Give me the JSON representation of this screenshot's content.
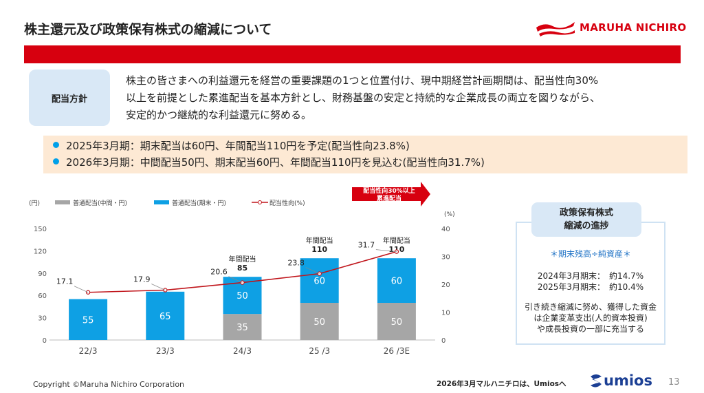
{
  "header": {
    "title": "株主還元及び政策保有株式の縮減について",
    "logo_text": "MARUHA NICHIRO"
  },
  "policy": {
    "label": "配当方針",
    "lines": [
      "株主の皆さまへの利益還元を経営の重要課題の1つと位置付け、現中期経営計画期間は、配当性向30%",
      "以上を前提とした累進配当を基本方針とし、財務基盤の安定と持続的な企業成長の両立を図りながら、",
      "安定的かつ継続的な利益還元に努める。"
    ]
  },
  "highlights": [
    "2025年3月期：期末配当は60円、年間配当110円を予定(配当性向23.8%)",
    "2026年3月期：中間配当50円、期末配当60円、年間配当110円を見込む(配当性向31.7%)"
  ],
  "colors": {
    "brand_red": "#d7000f",
    "interim_gray": "#a6a6a6",
    "year_end_blue": "#0ea0e4",
    "payout_line": "#c0151b",
    "highlight_bg": "#fde9d4",
    "label_bg": "#d9e8f6",
    "umios_blue": "#1b3f94"
  },
  "chart_data": {
    "type": "bar",
    "categories": [
      "22/3",
      "23/3",
      "24/3",
      "25 /3",
      "26 /3E"
    ],
    "series": [
      {
        "name": "普通配当(中間・円)",
        "values": [
          0,
          0,
          35,
          50,
          50
        ]
      },
      {
        "name": "普通配当(期末・円)",
        "values": [
          55,
          65,
          50,
          60,
          60
        ]
      },
      {
        "name": "配当性向(%)",
        "values": [
          17.1,
          17.9,
          20.6,
          23.8,
          31.7
        ]
      }
    ],
    "annual_labels": [
      {
        "label": "年間配当",
        "value": "85"
      },
      {
        "label": "年間配当",
        "value": "110"
      },
      {
        "label": "年間配当",
        "value": "110"
      }
    ],
    "left_axis_unit": "(円)",
    "right_axis_unit": "(%)",
    "y_ticks": [
      "0",
      "30",
      "60",
      "90",
      "120",
      "150"
    ],
    "y2_ticks": [
      "0",
      "10",
      "20",
      "30",
      "40"
    ],
    "ylim": [
      0,
      150
    ],
    "y2lim": [
      0,
      40
    ],
    "legend_position": "top",
    "arrow_callout": [
      "配当性向30%以上",
      "累進配当"
    ]
  },
  "side_panel": {
    "title_lines": [
      "政策保有株式",
      "縮減の進捗"
    ],
    "subtitle": "＊期末残高÷純資産＊",
    "stats": [
      "2024年3月期末：　約14.7%",
      "2025年3月期末：　約10.4%"
    ],
    "notes": [
      "引き続き縮減に努め、獲得した資金",
      "は企業変革支出(人的資本投資)",
      "や成長投資の一部に充当する"
    ]
  },
  "footer": {
    "copyright": "Copyright ©Maruha Nichiro Corporation",
    "umios_note": "2026年3月マルハニチロは、Umiosへ",
    "umios_logo": "umios",
    "page_number": "13"
  }
}
